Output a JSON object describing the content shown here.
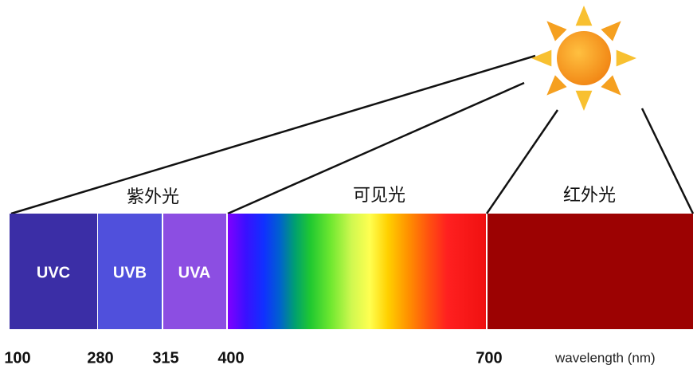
{
  "groups": [
    "紫外光",
    "可见光",
    "红外光"
  ],
  "bands": [
    "UVC",
    "UVB",
    "UVA"
  ],
  "wavelengths": [
    100,
    280,
    315,
    400,
    700
  ],
  "axis_label": "wavelength (nm)"
}
